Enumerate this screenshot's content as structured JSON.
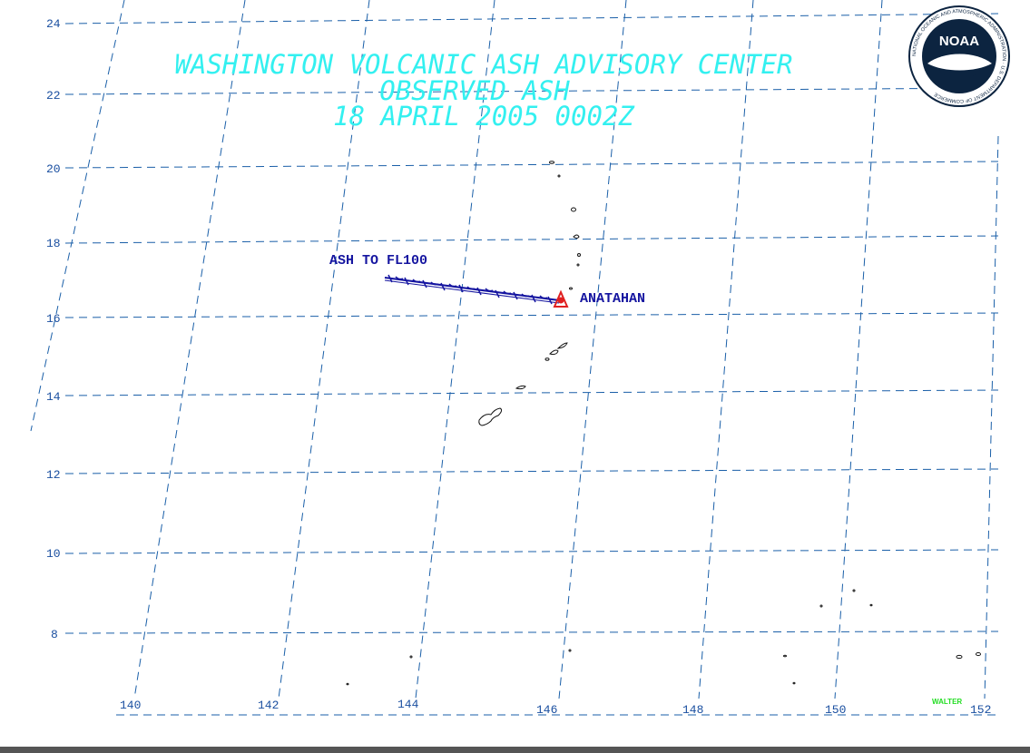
{
  "title": {
    "line1": "WASHINGTON VOLCANIC ASH ADVISORY CENTER",
    "line2": "OBSERVED ASH",
    "line3": "18 APRIL 2005   0002Z"
  },
  "logo": {
    "center_text": "NOAA",
    "ring_text": "NATIONAL OCEANIC AND ATMOSPHERIC ADMINISTRATION · U.S. DEPARTMENT OF COMMERCE"
  },
  "axes": {
    "lat_labels": [
      "24",
      "22",
      "20",
      "18",
      "16",
      "14",
      "12",
      "10",
      "8"
    ],
    "lon_labels": [
      "140",
      "142",
      "144",
      "146",
      "148",
      "150",
      "152"
    ]
  },
  "annotations": {
    "ash_label": "ASH TO FL100",
    "volcano_label": "ANATAHAN"
  },
  "credit": "WALTER",
  "colors": {
    "title": "#33f0f0",
    "grid": "#1a5fa8",
    "ash_line": "#1515a0",
    "volcano": "#e02020",
    "credit": "#22dd22"
  }
}
